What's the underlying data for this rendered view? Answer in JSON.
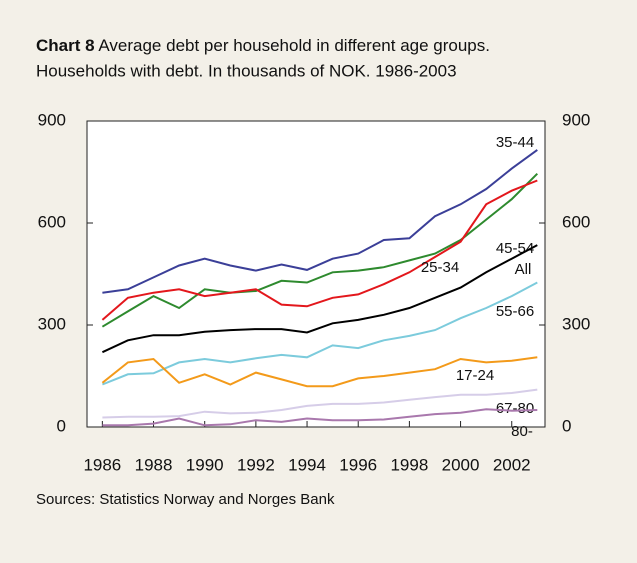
{
  "chart_data": {
    "type": "line",
    "title_label": "Chart 8",
    "title": "Average debt per household in different age groups.",
    "subtitle": "Households with debt. In thousands of NOK. 1986-2003",
    "source": "Sources: Statistics Norway and Norges Bank",
    "x": [
      1986,
      1987,
      1988,
      1989,
      1990,
      1991,
      1992,
      1993,
      1994,
      1995,
      1996,
      1997,
      1998,
      1999,
      2000,
      2001,
      2002,
      2003
    ],
    "xlim": [
      1985.4,
      2003.3
    ],
    "xticks": [
      1986,
      1988,
      1990,
      1992,
      1994,
      1996,
      1998,
      2000,
      2002
    ],
    "ylim": [
      0,
      900
    ],
    "yticks": [
      0,
      300,
      600,
      900
    ],
    "y2lim": [
      0,
      900
    ],
    "y2ticks": [
      0,
      300,
      600,
      900
    ],
    "series": [
      {
        "name": "35-44",
        "color": "#3b3f98",
        "values": [
          395,
          405,
          440,
          475,
          495,
          475,
          460,
          478,
          462,
          495,
          510,
          550,
          555,
          620,
          655,
          700,
          760,
          815
        ]
      },
      {
        "name": "45-54",
        "color": "#2e8a2e",
        "values": [
          295,
          340,
          385,
          350,
          405,
          395,
          400,
          430,
          425,
          455,
          460,
          470,
          490,
          510,
          550,
          610,
          670,
          745
        ]
      },
      {
        "name": "25-34",
        "color": "#e3171c",
        "values": [
          315,
          380,
          395,
          405,
          385,
          395,
          405,
          360,
          355,
          380,
          390,
          420,
          455,
          500,
          545,
          655,
          695,
          725
        ]
      },
      {
        "name": "All",
        "color": "#000000",
        "values": [
          220,
          255,
          270,
          270,
          280,
          285,
          288,
          288,
          278,
          305,
          315,
          330,
          350,
          380,
          410,
          455,
          495,
          535
        ]
      },
      {
        "name": "55-66",
        "color": "#7ccbdc",
        "values": [
          125,
          155,
          158,
          190,
          200,
          190,
          202,
          212,
          205,
          240,
          232,
          255,
          268,
          285,
          320,
          350,
          385,
          425
        ]
      },
      {
        "name": "17-24",
        "color": "#f39a1a",
        "values": [
          130,
          190,
          200,
          130,
          155,
          125,
          160,
          140,
          120,
          120,
          143,
          150,
          160,
          170,
          200,
          190,
          195,
          205
        ]
      },
      {
        "name": "67-80",
        "color": "#d6cde8",
        "values": [
          28,
          30,
          30,
          32,
          45,
          40,
          42,
          50,
          62,
          68,
          68,
          72,
          80,
          88,
          95,
          95,
          100,
          110
        ]
      },
      {
        "name": "80-",
        "color": "#a978ad",
        "values": [
          5,
          5,
          10,
          25,
          5,
          8,
          20,
          15,
          25,
          20,
          20,
          22,
          30,
          38,
          42,
          52,
          48,
          50
        ]
      }
    ]
  }
}
